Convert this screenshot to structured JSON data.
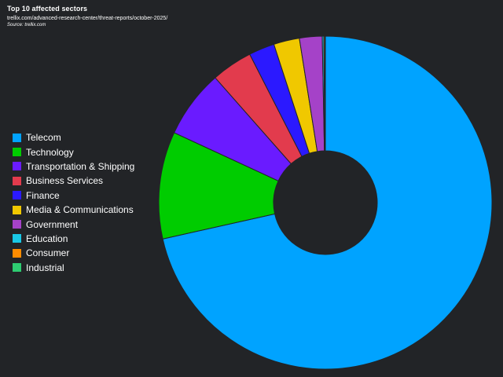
{
  "header": {
    "title": "Top 10 affected sectors",
    "url": "trellix.com/advanced-research-center/threat-reports/october-2025/",
    "source": "Source: trellix.com"
  },
  "chart_data": {
    "type": "pie",
    "donut": true,
    "legend_position": "left",
    "categories": [
      "Telecom",
      "Technology",
      "Transportation & Shipping",
      "Business Services",
      "Finance",
      "Media & Communications",
      "Government",
      "Education",
      "Consumer",
      "Industrial"
    ],
    "values": [
      71.5,
      10.4,
      6.6,
      4.0,
      2.5,
      2.5,
      2.2,
      0.15,
      0.1,
      0.05
    ],
    "colors": [
      "#00a3ff",
      "#00cc00",
      "#6a1bff",
      "#e23b4d",
      "#2b19ff",
      "#f0c800",
      "#a542c8",
      "#19c8e6",
      "#ff8c00",
      "#2ecc71"
    ]
  }
}
